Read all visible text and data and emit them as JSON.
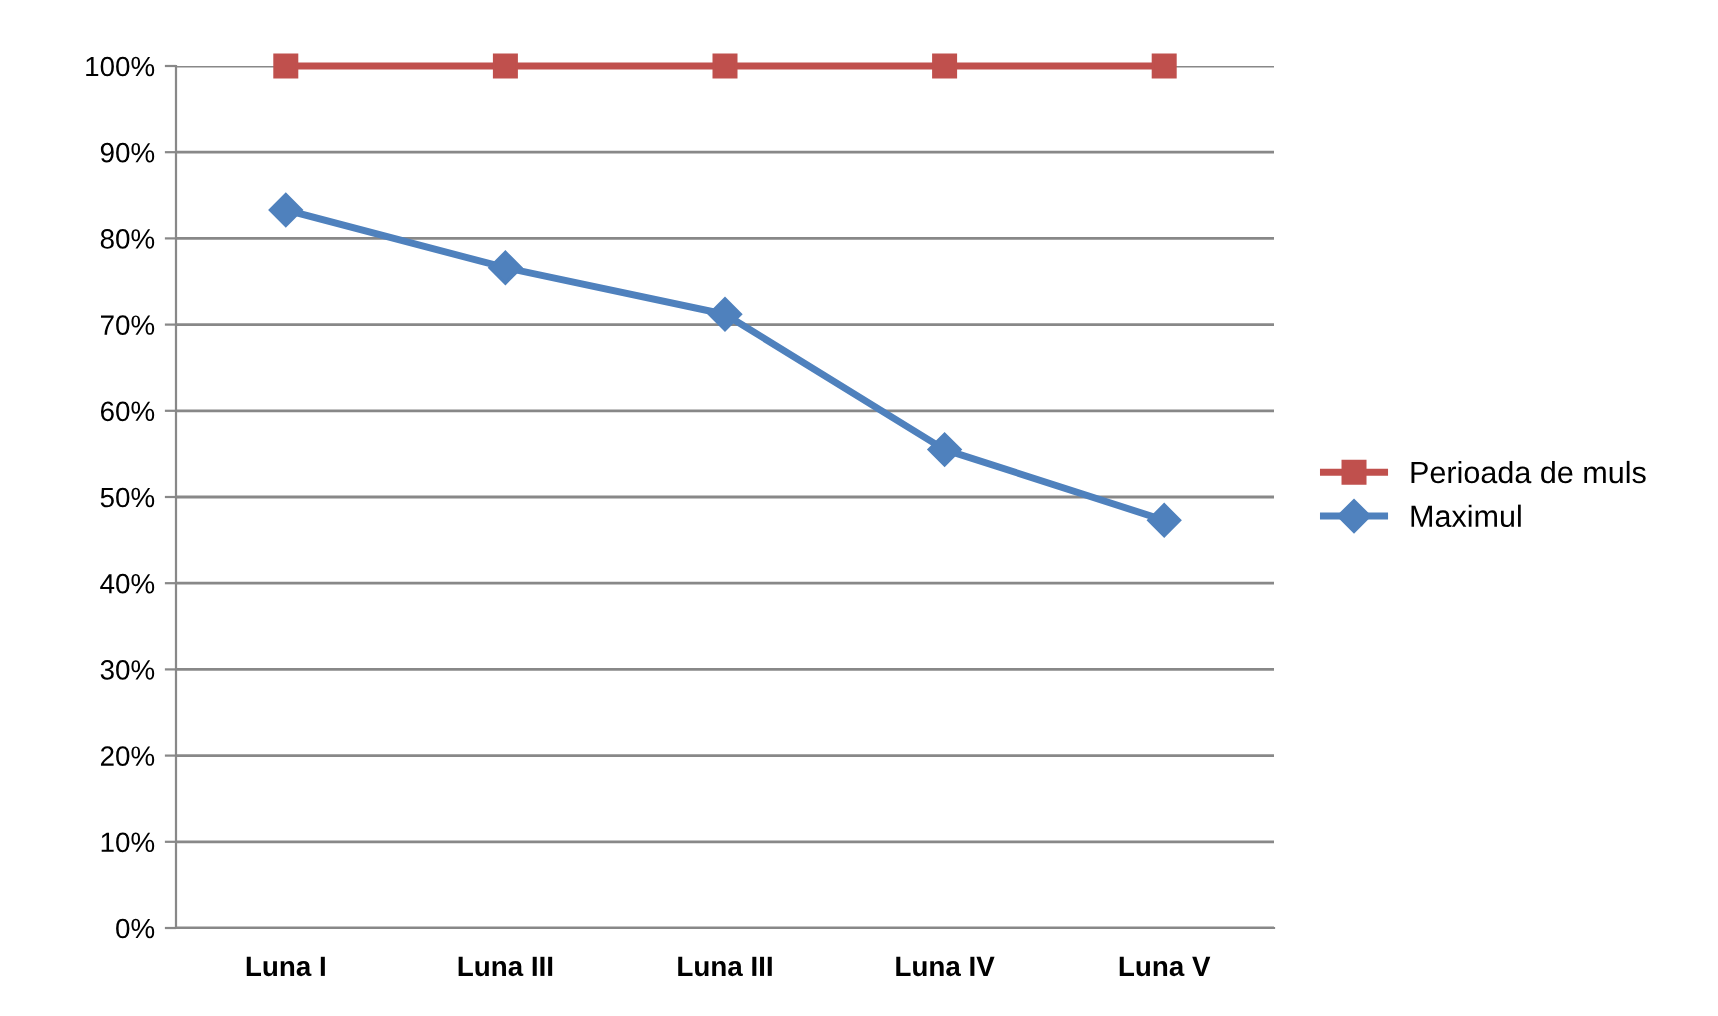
{
  "chart_data": {
    "type": "line",
    "categories": [
      "Luna I",
      "Luna III",
      "Luna III",
      "Luna IV",
      "Luna V"
    ],
    "series": [
      {
        "name": "Perioada de muls",
        "color": "#c0504d",
        "marker": "square",
        "values": [
          100,
          100,
          100,
          100,
          100
        ]
      },
      {
        "name": "Maximul",
        "color": "#4f81bd",
        "marker": "diamond",
        "values": [
          83.3,
          76.6,
          71.2,
          55.5,
          47.3
        ]
      }
    ],
    "ylim": [
      0,
      100
    ],
    "yticks": [
      {
        "value": 0,
        "label": "0%"
      },
      {
        "value": 10,
        "label": "10%"
      },
      {
        "value": 20,
        "label": "20%"
      },
      {
        "value": 30,
        "label": "30%"
      },
      {
        "value": 40,
        "label": "40%"
      },
      {
        "value": 50,
        "label": "50%"
      },
      {
        "value": 60,
        "label": "60%"
      },
      {
        "value": 70,
        "label": "70%"
      },
      {
        "value": 80,
        "label": "80%"
      },
      {
        "value": 90,
        "label": "90%"
      },
      {
        "value": 100,
        "label": "100%"
      }
    ],
    "grid": "y",
    "legend": "right"
  }
}
